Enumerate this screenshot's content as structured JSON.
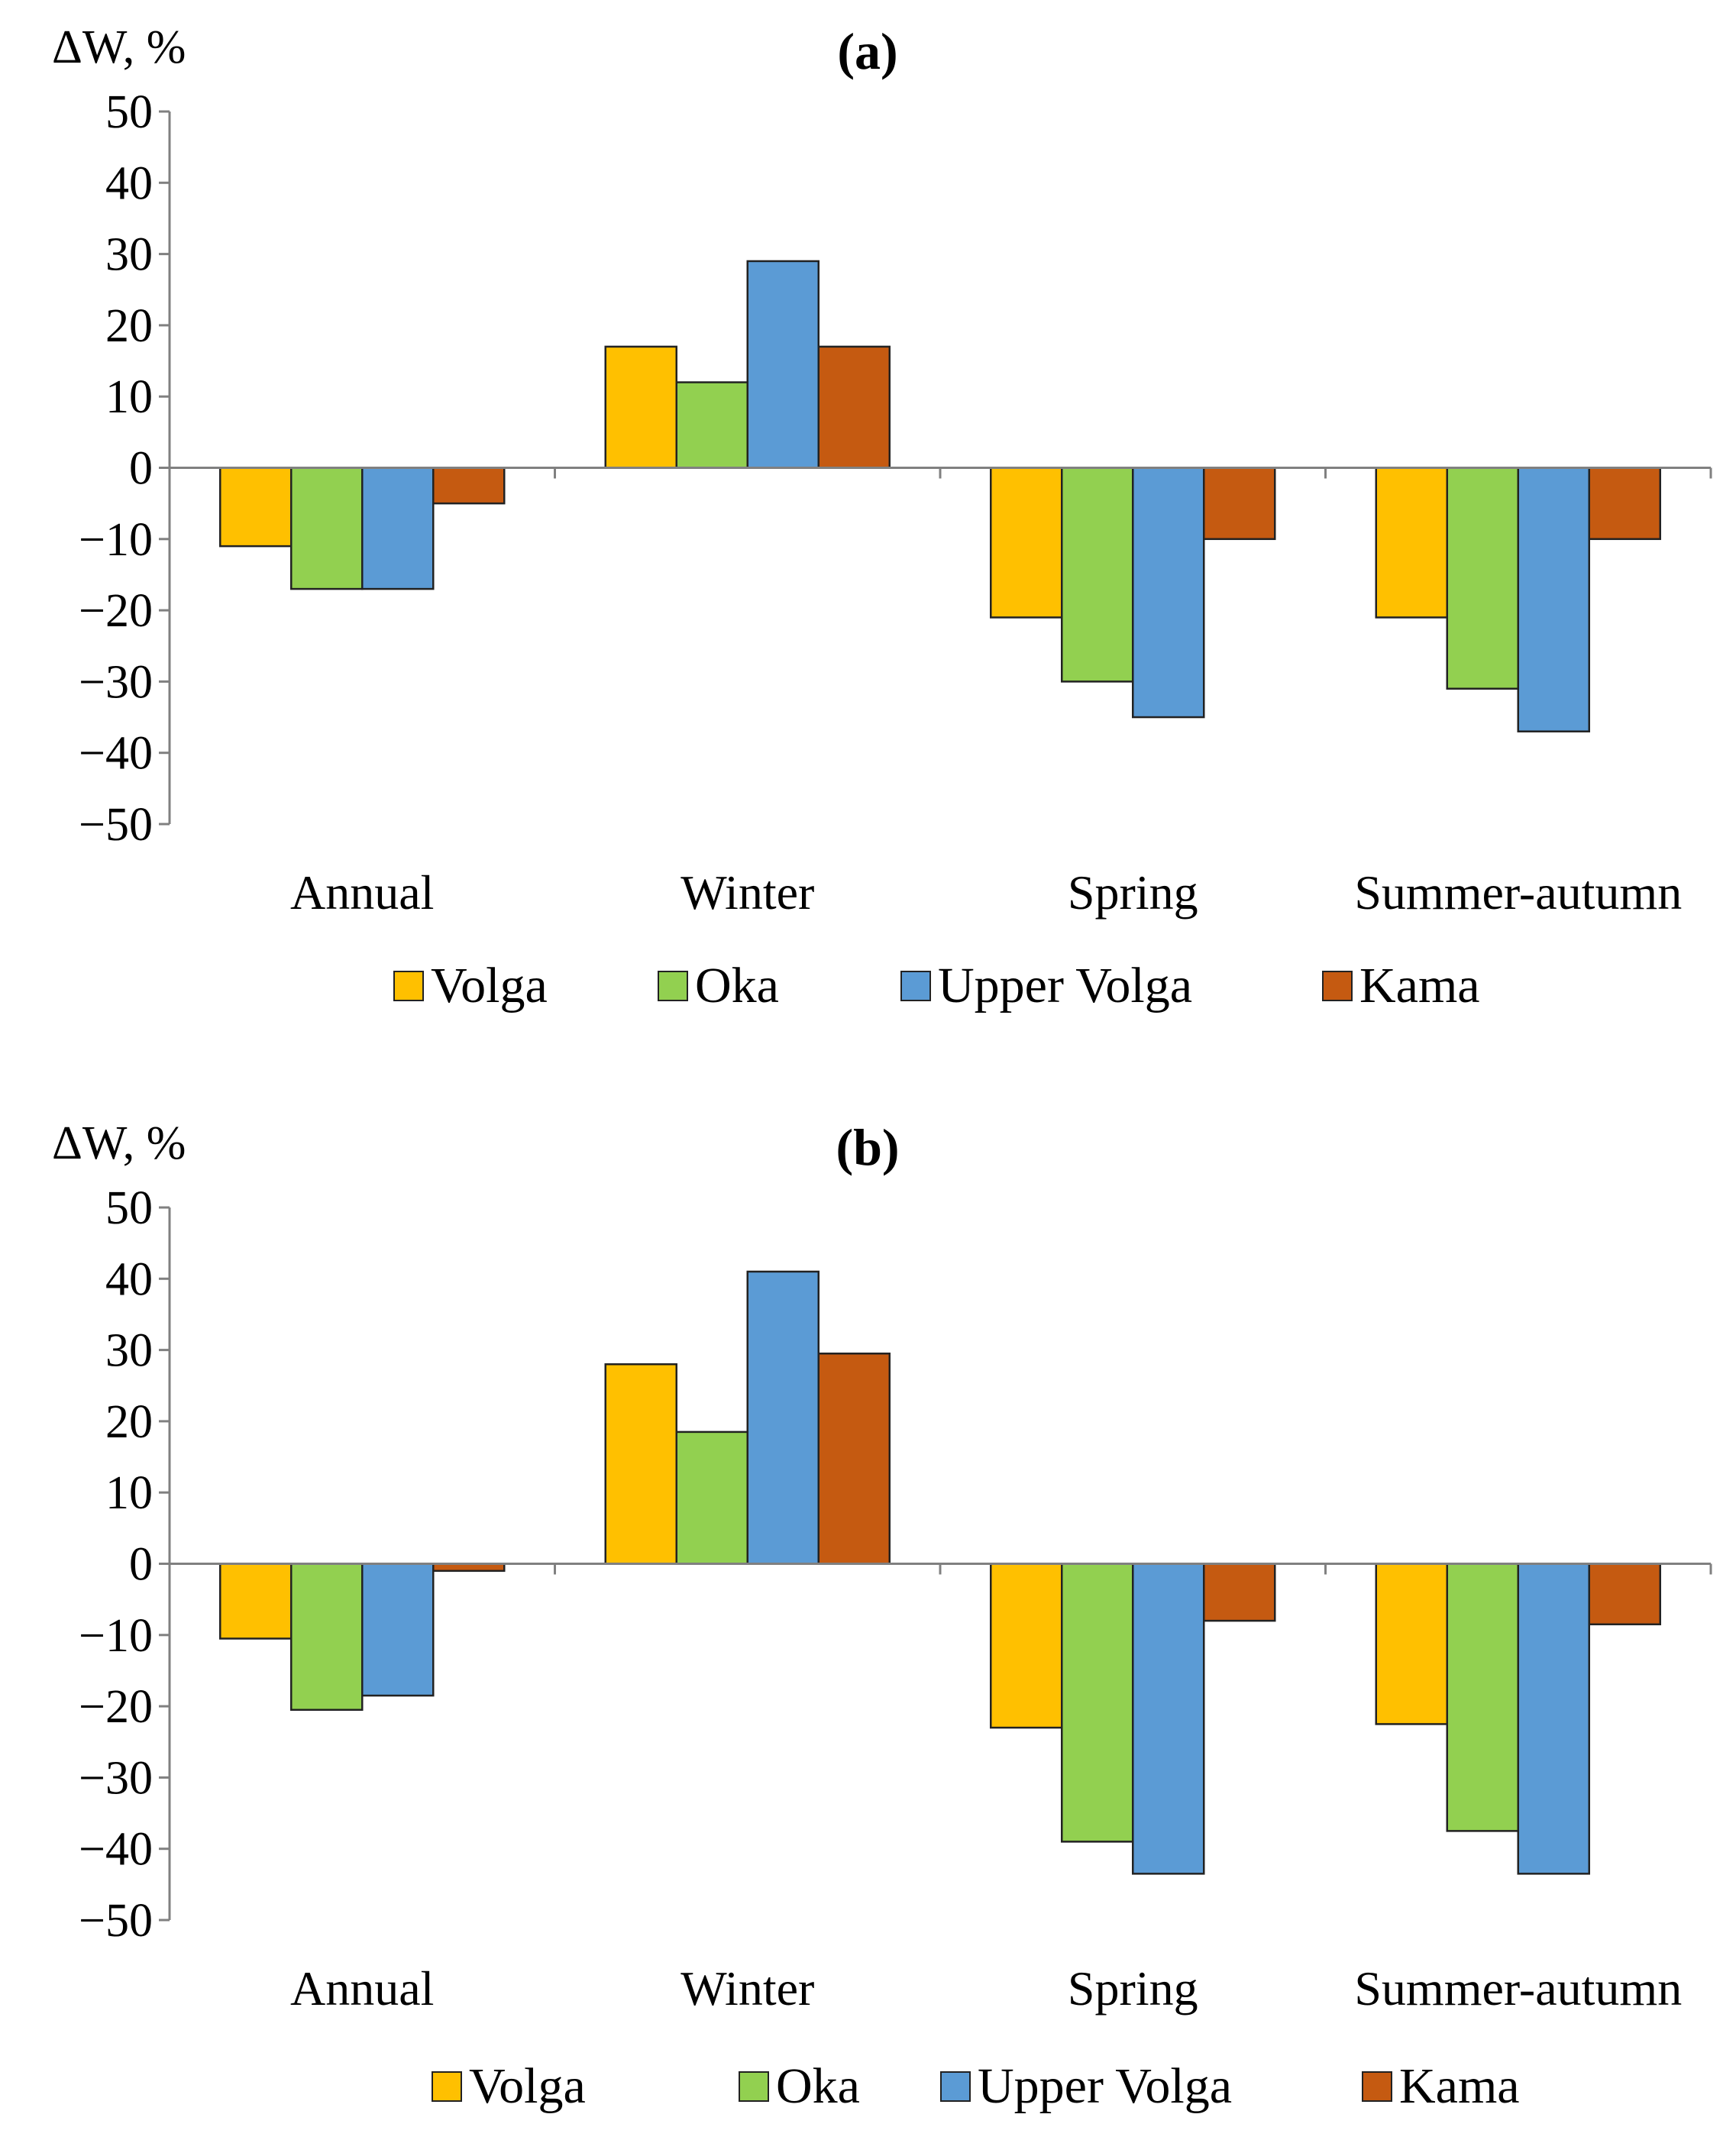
{
  "chart_data": [
    {
      "type": "bar",
      "panel": "a",
      "title": "(a)",
      "ylabel": "ΔW, %",
      "ylim": [
        -50,
        50
      ],
      "yticks": [
        50,
        40,
        30,
        20,
        10,
        0,
        -10,
        -20,
        -30,
        -40,
        -50
      ],
      "categories": [
        "Annual",
        "Winter",
        "Spring",
        "Summer-autumn"
      ],
      "series": [
        {
          "name": "Volga",
          "color": "#FFC000",
          "values": [
            -11,
            17,
            -21,
            -21
          ]
        },
        {
          "name": "Oka",
          "color": "#92D050",
          "values": [
            -17,
            12,
            -30,
            -31
          ]
        },
        {
          "name": "Upper Volga",
          "color": "#5B9BD5",
          "values": [
            -17,
            29,
            -35,
            -37
          ]
        },
        {
          "name": "Kama",
          "color": "#C55A11",
          "values": [
            -5,
            17,
            -10,
            -10
          ]
        }
      ],
      "legend": "bottom"
    },
    {
      "type": "bar",
      "panel": "b",
      "title": "(b)",
      "ylabel": "ΔW, %",
      "ylim": [
        -50,
        50
      ],
      "yticks": [
        50,
        40,
        30,
        20,
        10,
        0,
        -10,
        -20,
        -30,
        -40,
        -50
      ],
      "categories": [
        "Annual",
        "Winter",
        "Spring",
        "Summer-autumn"
      ],
      "series": [
        {
          "name": "Volga",
          "color": "#FFC000",
          "values": [
            -10.5,
            28,
            -23,
            -22.5
          ]
        },
        {
          "name": "Oka",
          "color": "#92D050",
          "values": [
            -20.5,
            18.5,
            -39,
            -37.5
          ]
        },
        {
          "name": "Upper Volga",
          "color": "#5B9BD5",
          "values": [
            -18.5,
            41,
            -43.5,
            -43.5
          ]
        },
        {
          "name": "Kama",
          "color": "#C55A11",
          "values": [
            -1,
            29.5,
            -8,
            -8.5
          ]
        }
      ],
      "legend": "bottom"
    }
  ]
}
